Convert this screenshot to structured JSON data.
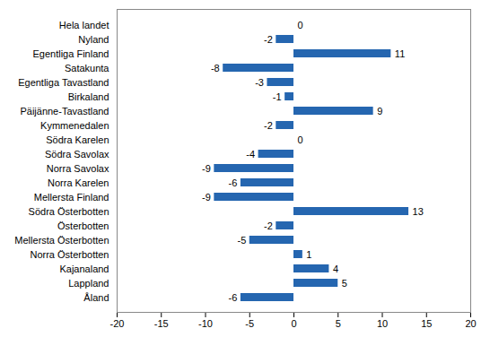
{
  "chart_data": {
    "type": "bar",
    "orientation": "horizontal",
    "categories": [
      "Hela landet",
      "Nyland",
      "Egentliga Finland",
      "Satakunta",
      "Egentliga Tavastland",
      "Birkaland",
      "Päijänne-Tavastland",
      "Kymmenedalen",
      "Södra Karelen",
      "Södra Savolax",
      "Norra Savolax",
      "Norra Karelen",
      "Mellersta Finland",
      "Södra Österbotten",
      "Österbotten",
      "Mellersta Österbotten",
      "Norra Österbotten",
      "Kajanaland",
      "Lappland",
      "Åland"
    ],
    "values": [
      0,
      -2,
      11,
      -8,
      -3,
      -1,
      9,
      -2,
      0,
      -4,
      -9,
      -6,
      -9,
      13,
      -2,
      -5,
      1,
      4,
      5,
      -6
    ],
    "color": "#2566b0",
    "xlim": [
      -20,
      20
    ],
    "xticks": [
      -20,
      -15,
      -10,
      -5,
      0,
      5,
      10,
      15,
      20
    ],
    "grid": false,
    "data_labels": true
  }
}
